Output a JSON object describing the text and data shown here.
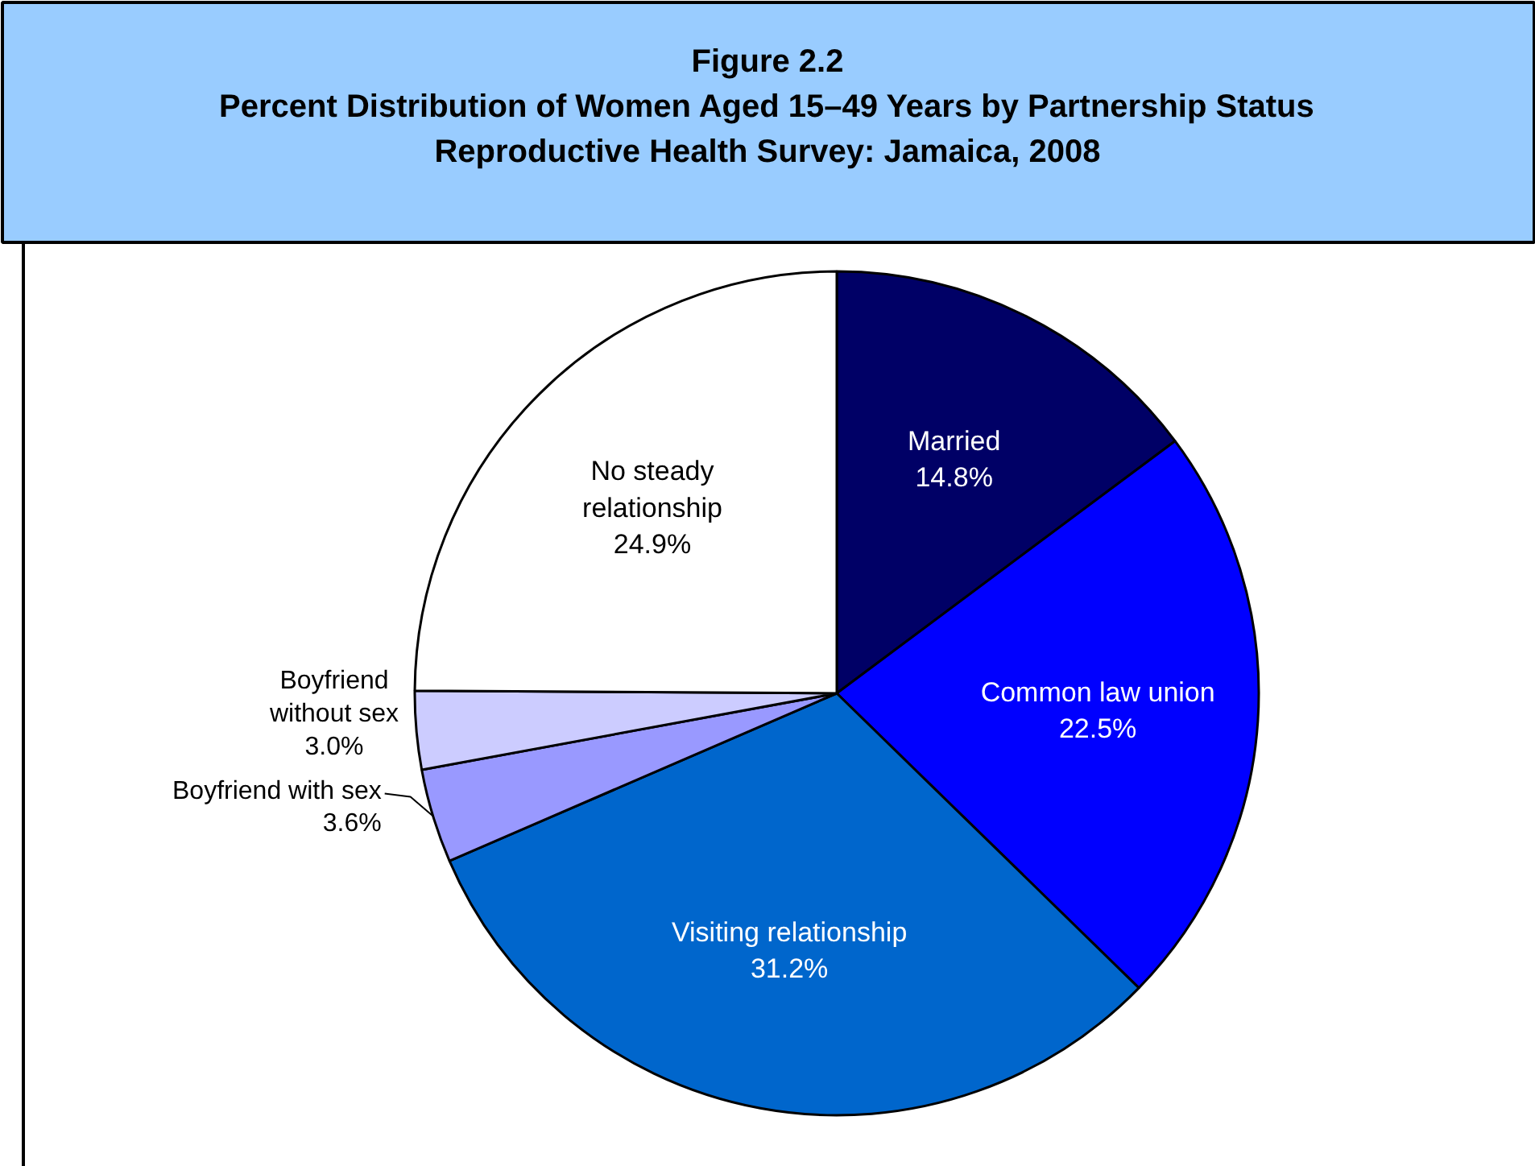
{
  "chart_data": {
    "type": "pie",
    "title": "Figure 2.2",
    "subtitle": "Percent Distribution of Women Aged 15–49 Years by Partnership Status\nReproductive Health Survey: Jamaica, 2008",
    "categories": [
      "Married",
      "Common law union",
      "Visiting relationship",
      "Boyfriend with sex",
      "Boyfriend without sex",
      "No steady relationship"
    ],
    "values": [
      14.8,
      22.5,
      31.2,
      3.6,
      3.0,
      24.9
    ],
    "colors": [
      "#000066",
      "#0000ff",
      "#0066cc",
      "#9999ff",
      "#ccccff",
      "#ffffff"
    ],
    "value_labels": [
      "14.8%",
      "22.5%",
      "31.2%",
      "3.6%",
      "3.0%",
      "24.9%"
    ]
  }
}
